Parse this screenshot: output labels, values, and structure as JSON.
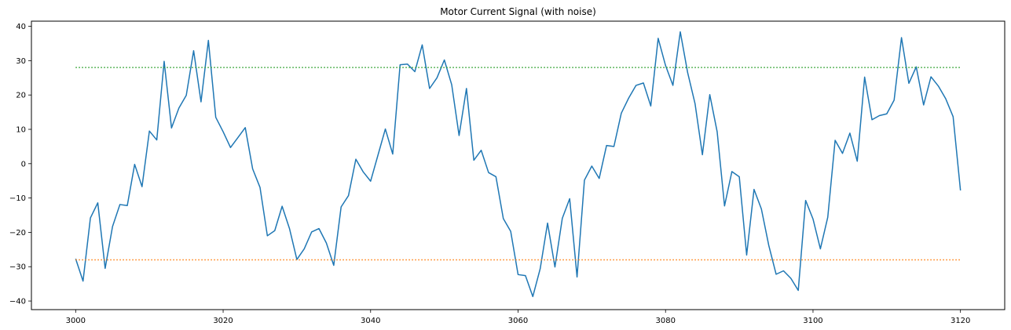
{
  "chart_data": {
    "type": "line",
    "title": "Motor Current Signal (with noise)",
    "xlabel": "",
    "ylabel": "",
    "xlim": [
      2994.0,
      3126.0
    ],
    "ylim": [
      -42.5,
      41.5
    ],
    "x_ticks": [
      3000,
      3020,
      3040,
      3060,
      3080,
      3100,
      3120
    ],
    "y_ticks": [
      -40,
      -30,
      -20,
      -10,
      0,
      10,
      20,
      30,
      40
    ],
    "grid": false,
    "legend": "none",
    "series": [
      {
        "color": "#1f77b4",
        "style": "solid",
        "x": [
          3000,
          3001,
          3002,
          3003,
          3004,
          3005,
          3006,
          3007,
          3008,
          3009,
          3010,
          3011,
          3012,
          3013,
          3014,
          3015,
          3016,
          3017,
          3018,
          3019,
          3020,
          3021,
          3022,
          3023,
          3024,
          3025,
          3026,
          3027,
          3028,
          3029,
          3030,
          3031,
          3032,
          3033,
          3034,
          3035,
          3036,
          3037,
          3038,
          3039,
          3040,
          3041,
          3042,
          3043,
          3044,
          3045,
          3046,
          3047,
          3048,
          3049,
          3050,
          3051,
          3052,
          3053,
          3054,
          3055,
          3056,
          3057,
          3058,
          3059,
          3060,
          3061,
          3062,
          3063,
          3064,
          3065,
          3066,
          3067,
          3068,
          3069,
          3070,
          3071,
          3072,
          3073,
          3074,
          3075,
          3076,
          3077,
          3078,
          3079,
          3080,
          3081,
          3082,
          3083,
          3084,
          3085,
          3086,
          3087,
          3088,
          3089,
          3090,
          3091,
          3092,
          3093,
          3094,
          3095,
          3096,
          3097,
          3098,
          3099,
          3100,
          3101,
          3102,
          3103,
          3104,
          3105,
          3106,
          3107,
          3108,
          3109,
          3110,
          3111,
          3112,
          3113,
          3114,
          3115,
          3116,
          3117,
          3118,
          3119,
          3120
        ],
        "y": [
          -27.7,
          -34.2,
          -15.8,
          -11.4,
          -30.5,
          -18.3,
          -11.9,
          -12.2,
          -0.2,
          -6.7,
          9.5,
          6.9,
          29.8,
          10.4,
          16.2,
          19.9,
          32.9,
          18.0,
          35.9,
          13.5,
          9.3,
          4.7,
          7.6,
          10.5,
          -1.5,
          -6.9,
          -21.0,
          -19.5,
          -12.4,
          -18.9,
          -27.9,
          -24.8,
          -19.9,
          -18.9,
          -23.1,
          -29.6,
          -12.6,
          -9.3,
          1.3,
          -2.4,
          -5.1,
          2.5,
          10.1,
          2.8,
          28.8,
          29.0,
          26.8,
          34.6,
          21.9,
          25.0,
          30.2,
          23.0,
          8.2,
          21.9,
          1.0,
          3.9,
          -2.6,
          -3.8,
          -16.0,
          -19.7,
          -32.3,
          -32.6,
          -38.7,
          -30.6,
          -17.3,
          -30.1,
          -15.9,
          -10.2,
          -33.0,
          -4.8,
          -0.7,
          -4.3,
          5.3,
          5.0,
          14.7,
          19.1,
          22.8,
          23.5,
          16.8,
          36.5,
          28.6,
          22.8,
          38.4,
          26.5,
          17.5,
          2.6,
          20.1,
          9.3,
          -12.3,
          -2.3,
          -3.8,
          -26.6,
          -7.5,
          -13.2,
          -23.8,
          -32.2,
          -31.2,
          -33.4,
          -36.9,
          -10.7,
          -16.1,
          -24.8,
          -15.6,
          6.8,
          3.0,
          8.9,
          0.7,
          25.2,
          12.8,
          14.0,
          14.5,
          18.5,
          36.7,
          23.4,
          28.2,
          17.1,
          25.3,
          22.6,
          18.9,
          13.7,
          -7.8
        ]
      },
      {
        "color": "#2ca02c",
        "style": "dotted",
        "x": [
          3000,
          3120
        ],
        "y": [
          28.0,
          28.0
        ]
      },
      {
        "color": "#ff7f0e",
        "style": "dotted",
        "x": [
          3000,
          3120
        ],
        "y": [
          -28.0,
          -28.0
        ]
      }
    ]
  }
}
